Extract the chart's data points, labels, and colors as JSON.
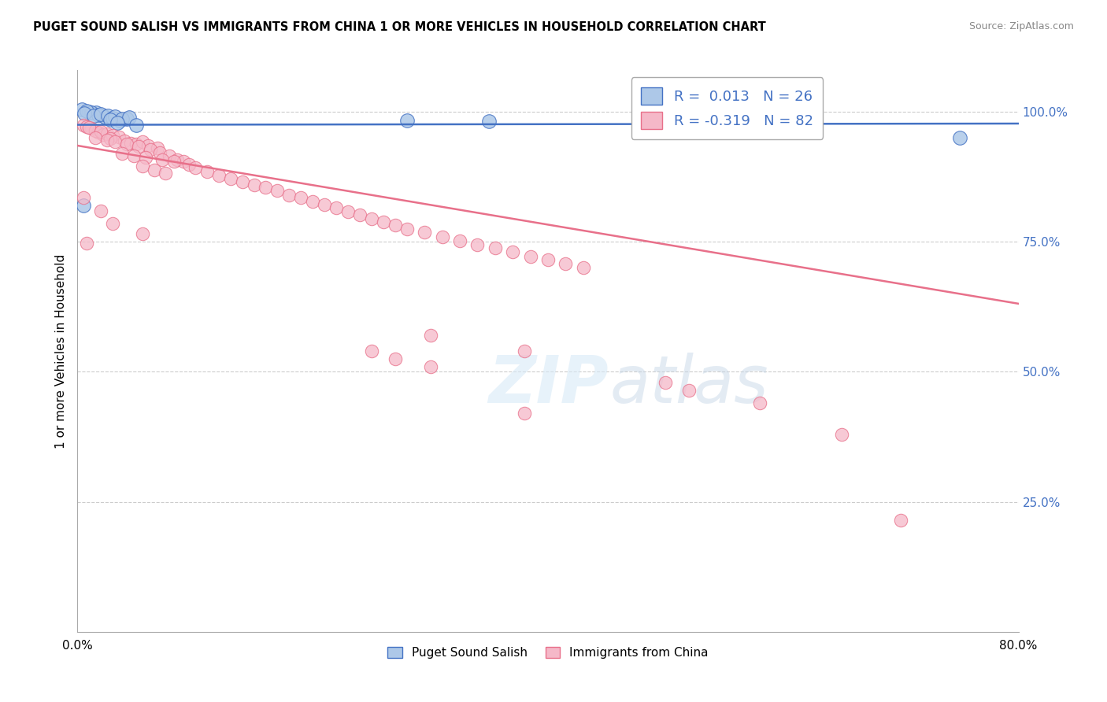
{
  "title": "PUGET SOUND SALISH VS IMMIGRANTS FROM CHINA 1 OR MORE VEHICLES IN HOUSEHOLD CORRELATION CHART",
  "source": "Source: ZipAtlas.com",
  "ylabel": "1 or more Vehicles in Household",
  "xlim": [
    0.0,
    0.8
  ],
  "ylim": [
    0.0,
    1.08
  ],
  "legend_r1": "R =  0.013   N = 26",
  "legend_r2": "R = -0.319   N = 82",
  "color_blue": "#adc8e8",
  "color_pink": "#f5b8c8",
  "line_blue": "#4472c4",
  "line_pink": "#e8708a",
  "blue_line_y_intercept": 0.975,
  "blue_line_slope": 0.003,
  "pink_line_y_intercept": 0.935,
  "pink_line_slope": -0.38,
  "blue_scatter": [
    [
      0.004,
      1.005
    ],
    [
      0.01,
      1.0
    ],
    [
      0.016,
      0.998
    ],
    [
      0.022,
      0.992
    ],
    [
      0.012,
      0.998
    ],
    [
      0.018,
      0.994
    ],
    [
      0.024,
      0.99
    ],
    [
      0.008,
      1.002
    ],
    [
      0.006,
      0.997
    ],
    [
      0.014,
      0.992
    ],
    [
      0.02,
      0.996
    ],
    [
      0.026,
      0.993
    ],
    [
      0.03,
      0.988
    ],
    [
      0.036,
      0.983
    ],
    [
      0.042,
      0.987
    ],
    [
      0.032,
      0.991
    ],
    [
      0.038,
      0.986
    ],
    [
      0.044,
      0.99
    ],
    [
      0.028,
      0.985
    ],
    [
      0.034,
      0.979
    ],
    [
      0.005,
      0.82
    ],
    [
      0.28,
      0.984
    ],
    [
      0.6,
      0.96
    ],
    [
      0.75,
      0.95
    ],
    [
      0.35,
      0.982
    ],
    [
      0.05,
      0.975
    ]
  ],
  "pink_scatter": [
    [
      0.005,
      0.975
    ],
    [
      0.012,
      0.968
    ],
    [
      0.018,
      0.96
    ],
    [
      0.008,
      0.972
    ],
    [
      0.015,
      0.964
    ],
    [
      0.022,
      0.956
    ],
    [
      0.01,
      0.97
    ],
    [
      0.025,
      0.958
    ],
    [
      0.03,
      0.955
    ],
    [
      0.02,
      0.962
    ],
    [
      0.035,
      0.952
    ],
    [
      0.028,
      0.948
    ],
    [
      0.04,
      0.944
    ],
    [
      0.045,
      0.94
    ],
    [
      0.05,
      0.938
    ],
    [
      0.055,
      0.943
    ],
    [
      0.06,
      0.935
    ],
    [
      0.068,
      0.93
    ],
    [
      0.015,
      0.95
    ],
    [
      0.025,
      0.945
    ],
    [
      0.032,
      0.942
    ],
    [
      0.042,
      0.938
    ],
    [
      0.052,
      0.934
    ],
    [
      0.062,
      0.928
    ],
    [
      0.07,
      0.922
    ],
    [
      0.078,
      0.916
    ],
    [
      0.085,
      0.908
    ],
    [
      0.09,
      0.905
    ],
    [
      0.095,
      0.898
    ],
    [
      0.1,
      0.893
    ],
    [
      0.038,
      0.92
    ],
    [
      0.048,
      0.915
    ],
    [
      0.058,
      0.912
    ],
    [
      0.072,
      0.908
    ],
    [
      0.082,
      0.904
    ],
    [
      0.11,
      0.885
    ],
    [
      0.12,
      0.878
    ],
    [
      0.13,
      0.872
    ],
    [
      0.14,
      0.865
    ],
    [
      0.15,
      0.86
    ],
    [
      0.055,
      0.895
    ],
    [
      0.065,
      0.888
    ],
    [
      0.075,
      0.882
    ],
    [
      0.16,
      0.855
    ],
    [
      0.17,
      0.848
    ],
    [
      0.18,
      0.84
    ],
    [
      0.19,
      0.835
    ],
    [
      0.2,
      0.828
    ],
    [
      0.21,
      0.822
    ],
    [
      0.22,
      0.815
    ],
    [
      0.23,
      0.808
    ],
    [
      0.24,
      0.802
    ],
    [
      0.25,
      0.795
    ],
    [
      0.26,
      0.788
    ],
    [
      0.27,
      0.782
    ],
    [
      0.28,
      0.775
    ],
    [
      0.295,
      0.768
    ],
    [
      0.31,
      0.76
    ],
    [
      0.325,
      0.752
    ],
    [
      0.34,
      0.745
    ],
    [
      0.355,
      0.738
    ],
    [
      0.37,
      0.73
    ],
    [
      0.385,
      0.722
    ],
    [
      0.4,
      0.715
    ],
    [
      0.415,
      0.708
    ],
    [
      0.43,
      0.7
    ],
    [
      0.005,
      0.835
    ],
    [
      0.02,
      0.81
    ],
    [
      0.03,
      0.785
    ],
    [
      0.055,
      0.765
    ],
    [
      0.008,
      0.748
    ],
    [
      0.3,
      0.57
    ],
    [
      0.38,
      0.54
    ],
    [
      0.3,
      0.51
    ],
    [
      0.38,
      0.42
    ],
    [
      0.7,
      0.215
    ],
    [
      0.5,
      0.48
    ],
    [
      0.52,
      0.465
    ],
    [
      0.58,
      0.44
    ],
    [
      0.65,
      0.38
    ],
    [
      0.25,
      0.54
    ],
    [
      0.27,
      0.525
    ]
  ]
}
